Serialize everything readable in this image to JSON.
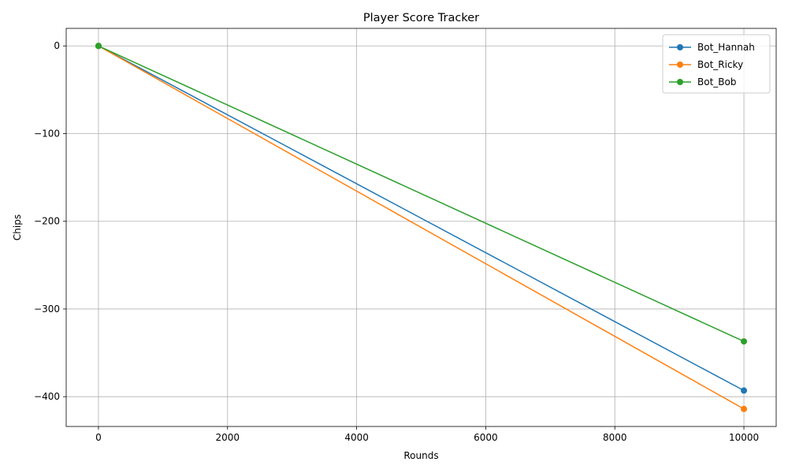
{
  "chart_data": {
    "type": "line",
    "title": "Player Score Tracker",
    "xlabel": "Rounds",
    "ylabel": "Chips",
    "x": [
      0,
      10000
    ],
    "xlim": [
      -500,
      10500
    ],
    "ylim": [
      -434,
      20
    ],
    "xticks": [
      0,
      2000,
      4000,
      6000,
      8000,
      10000
    ],
    "yticks": [
      0,
      -100,
      -200,
      -300,
      -400
    ],
    "xtick_labels": [
      "0",
      "2000",
      "4000",
      "6000",
      "8000",
      "10000"
    ],
    "ytick_labels": [
      "0",
      "−100",
      "−200",
      "−300",
      "−400"
    ],
    "grid": true,
    "legend_position": "top-right",
    "series": [
      {
        "name": "Bot_Hannah",
        "color": "#1f77b4",
        "values": [
          0,
          -393
        ]
      },
      {
        "name": "Bot_Ricky",
        "color": "#ff7f0e",
        "values": [
          0,
          -414
        ]
      },
      {
        "name": "Bot_Bob",
        "color": "#2ca02c",
        "values": [
          0,
          -337
        ]
      }
    ]
  }
}
